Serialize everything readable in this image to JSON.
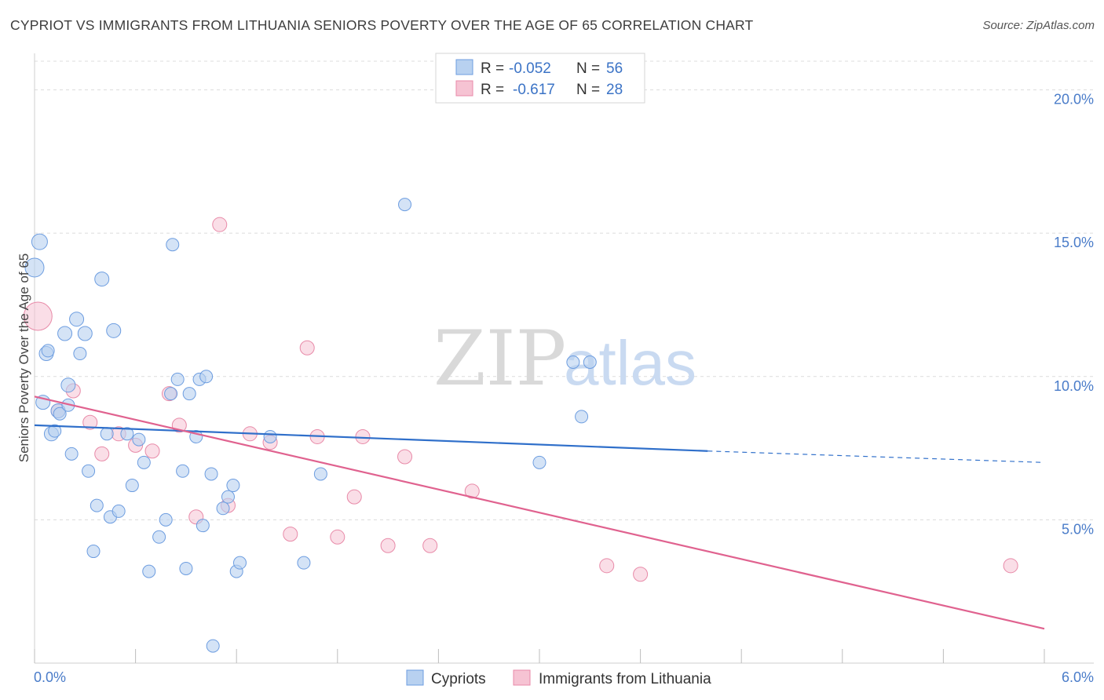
{
  "header": {
    "title": "CYPRIOT VS IMMIGRANTS FROM LITHUANIA SENIORS POVERTY OVER THE AGE OF 65 CORRELATION CHART",
    "source": "Source: ZipAtlas.com"
  },
  "watermark": {
    "zip": "ZIP",
    "atlas": "atlas"
  },
  "colors": {
    "blue_fill": "#b8d1f0",
    "blue_stroke": "#6d9de0",
    "blue_line": "#2f6fca",
    "pink_fill": "#f6c3d3",
    "pink_stroke": "#e88aa8",
    "pink_line": "#e0628f",
    "grid": "#dcdcdc",
    "axis_label": "#4a7cc9"
  },
  "legend_top": {
    "rows": [
      {
        "r_label": "R =",
        "r_value": "-0.052",
        "n_label": "N =",
        "n_value": "56"
      },
      {
        "r_label": "R =",
        "r_value": "-0.617",
        "n_label": "N =",
        "n_value": "28"
      }
    ]
  },
  "legend_bottom": {
    "items": [
      "Cypriots",
      "Immigrants from Lithuania"
    ]
  },
  "chart_data": {
    "type": "scatter",
    "title": "CYPRIOT VS IMMIGRANTS FROM LITHUANIA SENIORS POVERTY OVER THE AGE OF 65 CORRELATION CHART",
    "xlabel": "",
    "ylabel": "Seniors Poverty Over the Age of 65",
    "xlim": [
      0,
      6
    ],
    "ylim": [
      0,
      21
    ],
    "x_tick_labels": [
      "0.0%",
      "6.0%"
    ],
    "y_ticks": [
      5,
      10,
      15,
      20
    ],
    "y_tick_labels": [
      "5.0%",
      "10.0%",
      "15.0%",
      "20.0%"
    ],
    "grid": true,
    "series": [
      {
        "name": "Cypriots",
        "r": -0.052,
        "n": 56,
        "trend": {
          "x0": 0.0,
          "y0": 8.3,
          "x1": 4.0,
          "y1": 7.4,
          "dashed_to_x": 6.0,
          "dashed_to_y": 7.0
        },
        "points": [
          [
            0.0,
            13.8,
            12
          ],
          [
            0.03,
            14.7,
            10
          ],
          [
            0.05,
            9.1,
            9
          ],
          [
            0.07,
            10.8,
            9
          ],
          [
            0.08,
            10.9,
            8
          ],
          [
            0.1,
            8.0,
            9
          ],
          [
            0.12,
            8.1,
            8
          ],
          [
            0.14,
            8.8,
            9
          ],
          [
            0.15,
            8.7,
            8
          ],
          [
            0.18,
            11.5,
            9
          ],
          [
            0.2,
            9.7,
            9
          ],
          [
            0.22,
            7.3,
            8
          ],
          [
            0.25,
            12.0,
            9
          ],
          [
            0.27,
            10.8,
            8
          ],
          [
            0.3,
            11.5,
            9
          ],
          [
            0.32,
            6.7,
            8
          ],
          [
            0.35,
            3.9,
            8
          ],
          [
            0.37,
            5.5,
            8
          ],
          [
            0.4,
            13.4,
            9
          ],
          [
            0.43,
            8.0,
            8
          ],
          [
            0.45,
            5.1,
            8
          ],
          [
            0.47,
            11.6,
            9
          ],
          [
            0.5,
            5.3,
            8
          ],
          [
            0.55,
            8.0,
            8
          ],
          [
            0.58,
            6.2,
            8
          ],
          [
            0.62,
            7.8,
            8
          ],
          [
            0.65,
            7.0,
            8
          ],
          [
            0.68,
            3.2,
            8
          ],
          [
            0.74,
            4.4,
            8
          ],
          [
            0.78,
            5.0,
            8
          ],
          [
            0.82,
            14.6,
            8
          ],
          [
            0.81,
            9.4,
            8
          ],
          [
            0.85,
            9.9,
            8
          ],
          [
            0.88,
            6.7,
            8
          ],
          [
            0.9,
            3.3,
            8
          ],
          [
            0.92,
            9.4,
            8
          ],
          [
            0.96,
            7.9,
            8
          ],
          [
            0.98,
            9.9,
            8
          ],
          [
            1.0,
            4.8,
            8
          ],
          [
            1.02,
            10.0,
            8
          ],
          [
            1.05,
            6.6,
            8
          ],
          [
            1.06,
            0.6,
            8
          ],
          [
            1.12,
            5.4,
            8
          ],
          [
            1.15,
            5.8,
            8
          ],
          [
            1.18,
            6.2,
            8
          ],
          [
            1.2,
            3.2,
            8
          ],
          [
            1.22,
            3.5,
            8
          ],
          [
            1.4,
            7.9,
            8
          ],
          [
            1.6,
            3.5,
            8
          ],
          [
            1.7,
            6.6,
            8
          ],
          [
            2.2,
            16.0,
            8
          ],
          [
            3.0,
            7.0,
            8
          ],
          [
            3.2,
            10.5,
            8
          ],
          [
            3.25,
            8.6,
            8
          ],
          [
            3.3,
            10.5,
            8
          ],
          [
            0.2,
            9.0,
            8
          ]
        ]
      },
      {
        "name": "Immigrants from Lithuania",
        "r": -0.617,
        "n": 28,
        "trend": {
          "x0": 0.0,
          "y0": 9.3,
          "x1": 6.0,
          "y1": 1.2
        },
        "points": [
          [
            0.02,
            12.1,
            18
          ],
          [
            0.14,
            8.8,
            9
          ],
          [
            0.23,
            9.5,
            9
          ],
          [
            0.33,
            8.4,
            9
          ],
          [
            0.4,
            7.3,
            9
          ],
          [
            0.5,
            8.0,
            9
          ],
          [
            0.6,
            7.6,
            9
          ],
          [
            0.7,
            7.4,
            9
          ],
          [
            0.8,
            9.4,
            9
          ],
          [
            0.86,
            8.3,
            9
          ],
          [
            0.96,
            5.1,
            9
          ],
          [
            1.1,
            15.3,
            9
          ],
          [
            1.15,
            5.5,
            9
          ],
          [
            1.28,
            8.0,
            9
          ],
          [
            1.4,
            7.7,
            9
          ],
          [
            1.52,
            4.5,
            9
          ],
          [
            1.62,
            11.0,
            9
          ],
          [
            1.68,
            7.9,
            9
          ],
          [
            1.8,
            4.4,
            9
          ],
          [
            1.9,
            5.8,
            9
          ],
          [
            1.95,
            7.9,
            9
          ],
          [
            2.1,
            4.1,
            9
          ],
          [
            2.2,
            7.2,
            9
          ],
          [
            2.35,
            4.1,
            9
          ],
          [
            2.6,
            6.0,
            9
          ],
          [
            3.4,
            3.4,
            9
          ],
          [
            3.6,
            3.1,
            9
          ],
          [
            5.8,
            3.4,
            9
          ]
        ]
      }
    ]
  }
}
